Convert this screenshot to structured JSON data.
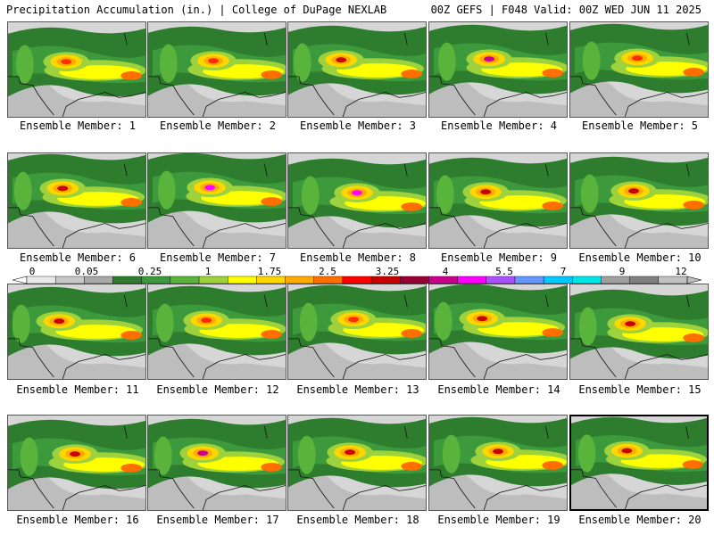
{
  "header": {
    "title_left": "Precipitation Accumulation (in.) | College of DuPage NEXLAB",
    "title_right": "00Z GEFS | F048 Valid: 00Z WED JUN 11 2025"
  },
  "panel_label_prefix": "Ensemble Member: ",
  "members": [
    {
      "id": 1,
      "label": "Ensemble Member: 1",
      "max_in": 1.75
    },
    {
      "id": 2,
      "label": "Ensemble Member: 2",
      "max_in": 1.75
    },
    {
      "id": 3,
      "label": "Ensemble Member: 3",
      "max_in": 2.5
    },
    {
      "id": 4,
      "label": "Ensemble Member: 4",
      "max_in": 4
    },
    {
      "id": 5,
      "label": "Ensemble Member: 5",
      "max_in": 1.75
    },
    {
      "id": 6,
      "label": "Ensemble Member: 6",
      "max_in": 2.5
    },
    {
      "id": 7,
      "label": "Ensemble Member: 7",
      "max_in": 5.5
    },
    {
      "id": 8,
      "label": "Ensemble Member: 8",
      "max_in": 5.5
    },
    {
      "id": 9,
      "label": "Ensemble Member: 9",
      "max_in": 2.5
    },
    {
      "id": 10,
      "label": "Ensemble Member: 10",
      "max_in": 2.5
    },
    {
      "id": 11,
      "label": "Ensemble Member: 11",
      "max_in": 2.5
    },
    {
      "id": 12,
      "label": "Ensemble Member: 12",
      "max_in": 1.75
    },
    {
      "id": 13,
      "label": "Ensemble Member: 13",
      "max_in": 1.75
    },
    {
      "id": 14,
      "label": "Ensemble Member: 14",
      "max_in": 2.5
    },
    {
      "id": 15,
      "label": "Ensemble Member: 15",
      "max_in": 2.5
    },
    {
      "id": 16,
      "label": "Ensemble Member: 16",
      "max_in": 2.5
    },
    {
      "id": 17,
      "label": "Ensemble Member: 17",
      "max_in": 4
    },
    {
      "id": 18,
      "label": "Ensemble Member: 18",
      "max_in": 2.5
    },
    {
      "id": 19,
      "label": "Ensemble Member: 19",
      "max_in": 2.5
    },
    {
      "id": 20,
      "label": "Ensemble Member: 20",
      "max_in": 2.5
    }
  ],
  "legend": {
    "tick_labels": [
      "0",
      "0.05",
      "0.25",
      "1",
      "1.75",
      "2.5",
      "3.25",
      "4",
      "5.5",
      "7",
      "9",
      "12"
    ],
    "colors": [
      "#e8e8e8",
      "#c8c8c8",
      "#a8a8a8",
      "#2e7d2e",
      "#3c9a3c",
      "#5ab43c",
      "#9ed23c",
      "#ffff00",
      "#ffd700",
      "#ffaa00",
      "#ff6e00",
      "#ff0000",
      "#c80000",
      "#960032",
      "#c8008c",
      "#ff00ff",
      "#aa50ff",
      "#6496ff",
      "#00c8ff",
      "#00e6e6",
      "#a0a0a0",
      "#808080",
      "#c0c0c0"
    ]
  }
}
